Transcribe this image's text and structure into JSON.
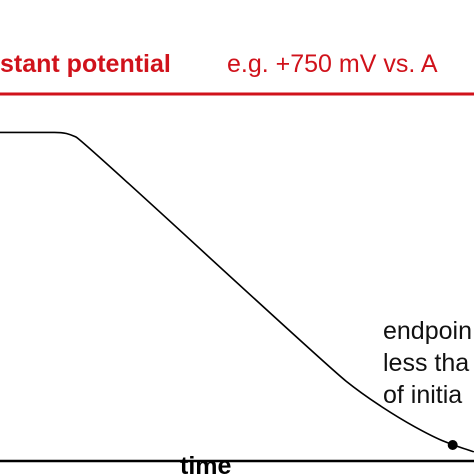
{
  "header": {
    "condition_label": "stant potential",
    "condition_example": "e.g. +750 mV vs. A"
  },
  "colors": {
    "accent": "#d0121b",
    "curve": "#000000",
    "axis": "#000000"
  },
  "chart_data": {
    "type": "line",
    "title": "",
    "xlabel": "time",
    "ylabel": "",
    "grid": false,
    "series": [
      {
        "values_description_free": true,
        "points": [
          [
            0.0,
            0.72
          ],
          [
            0.1,
            0.72
          ],
          [
            0.13,
            0.72
          ],
          [
            0.15,
            0.715
          ],
          [
            0.17,
            0.705
          ],
          [
            0.7,
            0.2
          ],
          [
            0.76,
            0.15
          ],
          [
            0.84,
            0.095
          ],
          [
            0.91,
            0.055
          ],
          [
            0.955,
            0.035
          ],
          [
            1.0,
            0.02
          ]
        ]
      }
    ],
    "marker": {
      "x": 0.955,
      "y": 0.035
    },
    "annotation": {
      "lines": [
        "endpoin",
        "less tha",
        "of initia"
      ]
    }
  }
}
